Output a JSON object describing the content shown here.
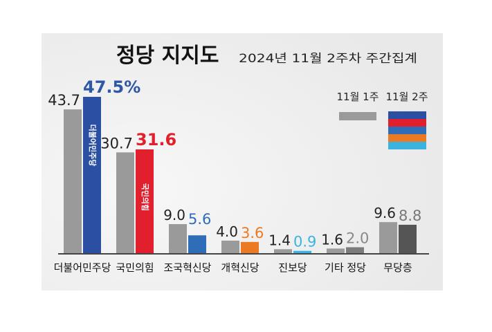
{
  "chart_data": {
    "type": "bar",
    "title": "정당 지지도",
    "subtitle": "2024년 11월 2주차 주간집계",
    "categories": [
      "더불어민주당",
      "국민의힘",
      "조국혁신당",
      "개혁신당",
      "진보당",
      "기타 정당",
      "무당층"
    ],
    "series": [
      {
        "name": "11월 1주",
        "values": [
          43.7,
          30.7,
          9.0,
          4.0,
          1.4,
          1.6,
          9.6
        ],
        "labels": [
          "43.7",
          "30.7",
          "9.0",
          "4.0",
          "1.4",
          "1.6",
          "9.6"
        ],
        "color": "#9a9a9a"
      },
      {
        "name": "11월 2주",
        "values": [
          47.5,
          31.6,
          5.6,
          3.6,
          0.9,
          2.0,
          8.8
        ],
        "labels": [
          "47.5%",
          "31.6",
          "5.6",
          "3.6",
          "0.9",
          "2.0",
          "8.8"
        ],
        "colors": [
          "#2a4fa3",
          "#e21f2d",
          "#2f6db8",
          "#ea7b24",
          "#3bb3e0",
          "#7c7c7c",
          "#555555"
        ],
        "label_colors": [
          "#2f57a8",
          "#e21f2d",
          "#2f6db8",
          "#ea7b24",
          "#3bb3e0",
          "#888888",
          "#777777"
        ]
      }
    ],
    "legend_placement": "top-right",
    "legend_swatch_colors": [
      "#2a4fa3",
      "#e21f2d",
      "#2f6db8",
      "#ea7b24",
      "#3bb3e0"
    ],
    "ylim": [
      0,
      50
    ],
    "grid": false,
    "bar_logos": [
      "더불어민주당",
      "국민의힘"
    ]
  }
}
